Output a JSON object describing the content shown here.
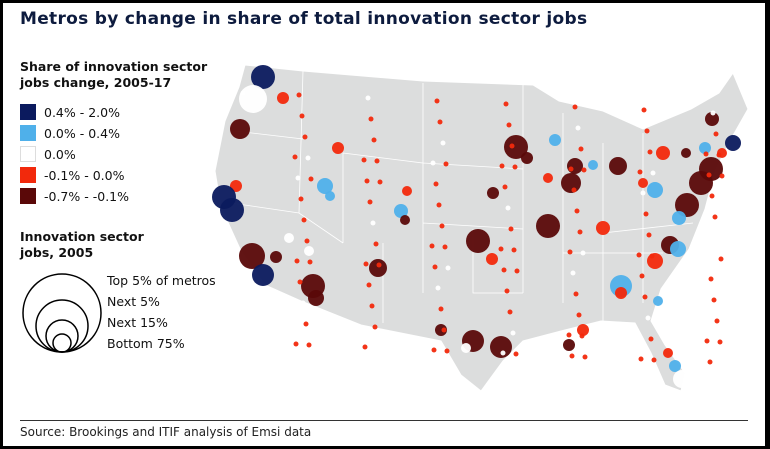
{
  "title": "Metros by change in share of total innovation sector jobs",
  "legend_color": {
    "heading_line1": "Share of innovation sector",
    "heading_line2": "jobs change, 2005-17",
    "items": [
      {
        "label": "0.4% -  2.0%",
        "color": "#0b1a5e"
      },
      {
        "label": "0.0% -  0.4%",
        "color": "#4fb0ea"
      },
      {
        "label": "0.0%",
        "color": "#ffffff"
      },
      {
        "label": "-0.1% -  0.0%",
        "color": "#f2290c"
      },
      {
        "label": "-0.7% - -0.1%",
        "color": "#5a0808"
      }
    ]
  },
  "legend_size": {
    "heading_line1": "Innovation sector",
    "heading_line2": "jobs, 2005",
    "items": [
      "Top 5% of metros",
      "Next 5%",
      "Next 15%",
      "Bottom 75%"
    ]
  },
  "source": "Source: Brookings and ITIF analysis of Emsi data"
}
